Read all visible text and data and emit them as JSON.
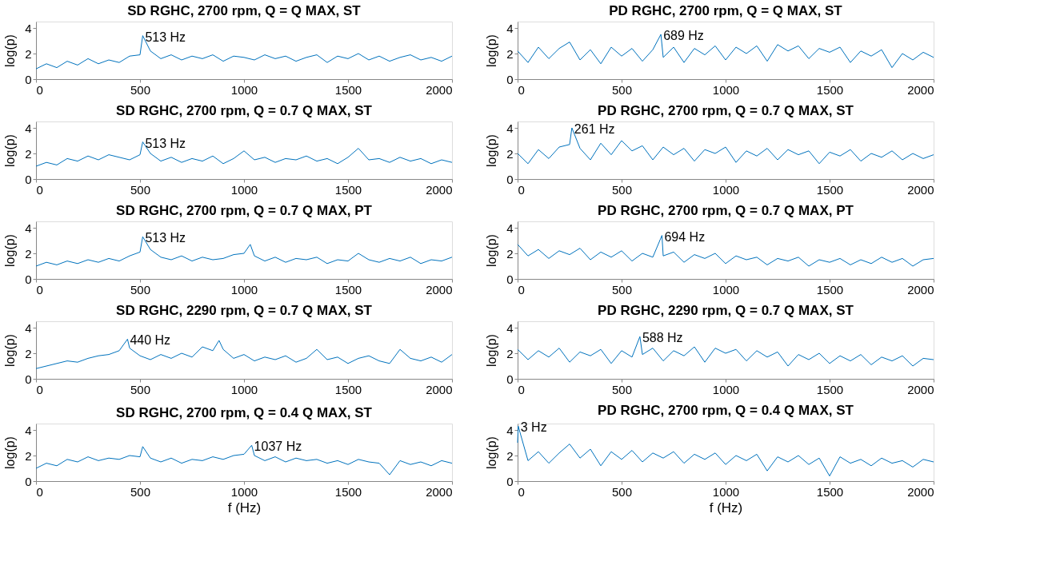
{
  "chart_data": [
    {
      "type": "line",
      "title": "SD RGHC, 2700 rpm, Q = Q MAX, ST",
      "ylabel": "log(p)",
      "xlim": [
        0,
        2000
      ],
      "xticks": [
        0,
        500,
        1000,
        1500,
        2000
      ],
      "ylim": [
        0,
        4.5
      ],
      "yticks": [
        0,
        2,
        4
      ],
      "annotations": [
        {
          "text": "513 Hz",
          "x": 513,
          "y": 3.4
        }
      ],
      "series": [
        {
          "color": "#0072bd",
          "x": [
            0,
            50,
            100,
            150,
            200,
            250,
            300,
            350,
            400,
            450,
            500,
            513,
            550,
            600,
            650,
            700,
            750,
            800,
            850,
            900,
            950,
            1000,
            1050,
            1100,
            1150,
            1200,
            1250,
            1300,
            1350,
            1400,
            1450,
            1500,
            1550,
            1600,
            1650,
            1700,
            1750,
            1800,
            1850,
            1900,
            1950,
            2000
          ],
          "values": [
            0.8,
            1.2,
            0.9,
            1.4,
            1.1,
            1.6,
            1.2,
            1.5,
            1.3,
            1.8,
            1.9,
            3.4,
            2.2,
            1.6,
            1.9,
            1.5,
            1.8,
            1.6,
            1.9,
            1.4,
            1.8,
            1.7,
            1.5,
            1.9,
            1.6,
            1.8,
            1.4,
            1.7,
            1.9,
            1.3,
            1.8,
            1.6,
            2.0,
            1.5,
            1.8,
            1.4,
            1.7,
            1.9,
            1.5,
            1.7,
            1.4,
            1.8
          ]
        }
      ]
    },
    {
      "type": "line",
      "title": "PD RGHC, 2700 rpm, Q = Q MAX, ST",
      "ylabel": "log(p)",
      "xlim": [
        0,
        2000
      ],
      "xticks": [
        0,
        500,
        1000,
        1500,
        2000
      ],
      "ylim": [
        0,
        4.5
      ],
      "yticks": [
        0,
        2,
        4
      ],
      "annotations": [
        {
          "text": "689 Hz",
          "x": 689,
          "y": 3.5
        }
      ],
      "series": [
        {
          "color": "#0072bd",
          "x": [
            0,
            50,
            100,
            150,
            200,
            250,
            300,
            350,
            400,
            450,
            500,
            550,
            600,
            650,
            689,
            700,
            750,
            800,
            850,
            900,
            950,
            1000,
            1050,
            1100,
            1150,
            1200,
            1250,
            1300,
            1350,
            1400,
            1450,
            1500,
            1550,
            1600,
            1650,
            1700,
            1750,
            1800,
            1850,
            1900,
            1950,
            2000
          ],
          "values": [
            2.2,
            1.3,
            2.5,
            1.6,
            2.4,
            2.9,
            1.5,
            2.3,
            1.2,
            2.5,
            1.8,
            2.4,
            1.4,
            2.3,
            3.5,
            1.7,
            2.5,
            1.3,
            2.4,
            1.9,
            2.6,
            1.5,
            2.5,
            2.0,
            2.6,
            1.4,
            2.7,
            2.2,
            2.6,
            1.6,
            2.4,
            2.1,
            2.5,
            1.3,
            2.2,
            1.8,
            2.3,
            0.9,
            2.0,
            1.5,
            2.1,
            1.7
          ]
        }
      ]
    },
    {
      "type": "line",
      "title": "SD RGHC, 2700 rpm, Q = 0.7 Q MAX, ST",
      "ylabel": "log(p)",
      "xlim": [
        0,
        2000
      ],
      "xticks": [
        0,
        500,
        1000,
        1500,
        2000
      ],
      "ylim": [
        0,
        4.5
      ],
      "yticks": [
        0,
        2,
        4
      ],
      "annotations": [
        {
          "text": "513 Hz",
          "x": 513,
          "y": 2.9
        }
      ],
      "series": [
        {
          "color": "#0072bd",
          "x": [
            0,
            50,
            100,
            150,
            200,
            250,
            300,
            350,
            400,
            450,
            500,
            513,
            550,
            600,
            650,
            700,
            750,
            800,
            850,
            900,
            950,
            1000,
            1050,
            1100,
            1150,
            1200,
            1250,
            1300,
            1350,
            1400,
            1450,
            1500,
            1550,
            1600,
            1650,
            1700,
            1750,
            1800,
            1850,
            1900,
            1950,
            2000
          ],
          "values": [
            1.0,
            1.3,
            1.1,
            1.6,
            1.4,
            1.8,
            1.5,
            1.9,
            1.7,
            1.5,
            1.9,
            2.9,
            2.0,
            1.4,
            1.7,
            1.3,
            1.6,
            1.4,
            1.8,
            1.2,
            1.6,
            2.2,
            1.5,
            1.7,
            1.3,
            1.6,
            1.5,
            1.8,
            1.4,
            1.6,
            1.2,
            1.7,
            2.4,
            1.5,
            1.6,
            1.3,
            1.7,
            1.4,
            1.6,
            1.2,
            1.5,
            1.3
          ]
        }
      ]
    },
    {
      "type": "line",
      "title": "PD RGHC, 2700 rpm, Q = 0.7 Q MAX, ST",
      "ylabel": "log(p)",
      "xlim": [
        0,
        2000
      ],
      "xticks": [
        0,
        500,
        1000,
        1500,
        2000
      ],
      "ylim": [
        0,
        4.5
      ],
      "yticks": [
        0,
        2,
        4
      ],
      "annotations": [
        {
          "text": "261 Hz",
          "x": 261,
          "y": 4.0
        }
      ],
      "series": [
        {
          "color": "#0072bd",
          "x": [
            0,
            50,
            100,
            150,
            200,
            250,
            261,
            300,
            350,
            400,
            450,
            500,
            550,
            600,
            650,
            700,
            750,
            800,
            850,
            900,
            950,
            1000,
            1050,
            1100,
            1150,
            1200,
            1250,
            1300,
            1350,
            1400,
            1450,
            1500,
            1550,
            1600,
            1650,
            1700,
            1750,
            1800,
            1850,
            1900,
            1950,
            2000
          ],
          "values": [
            2.0,
            1.2,
            2.3,
            1.6,
            2.5,
            2.7,
            4.0,
            2.4,
            1.5,
            2.8,
            1.9,
            3.0,
            2.2,
            2.6,
            1.5,
            2.5,
            1.9,
            2.4,
            1.4,
            2.3,
            2.0,
            2.5,
            1.3,
            2.2,
            1.8,
            2.4,
            1.5,
            2.3,
            1.9,
            2.2,
            1.2,
            2.1,
            1.8,
            2.3,
            1.4,
            2.0,
            1.7,
            2.2,
            1.5,
            2.0,
            1.6,
            1.9
          ]
        }
      ]
    },
    {
      "type": "line",
      "title": "SD RGHC, 2700 rpm, Q = 0.7 Q MAX, PT",
      "ylabel": "log(p)",
      "xlim": [
        0,
        2000
      ],
      "xticks": [
        0,
        500,
        1000,
        1500,
        2000
      ],
      "ylim": [
        0,
        4.5
      ],
      "yticks": [
        0,
        2,
        4
      ],
      "annotations": [
        {
          "text": "513 Hz",
          "x": 513,
          "y": 3.3
        }
      ],
      "series": [
        {
          "color": "#0072bd",
          "x": [
            0,
            50,
            100,
            150,
            200,
            250,
            300,
            350,
            400,
            450,
            500,
            513,
            550,
            600,
            650,
            700,
            750,
            800,
            850,
            900,
            950,
            1000,
            1030,
            1050,
            1100,
            1150,
            1200,
            1250,
            1300,
            1350,
            1400,
            1450,
            1500,
            1550,
            1600,
            1650,
            1700,
            1750,
            1800,
            1850,
            1900,
            1950,
            2000
          ],
          "values": [
            1.0,
            1.3,
            1.1,
            1.4,
            1.2,
            1.5,
            1.3,
            1.6,
            1.4,
            1.8,
            2.1,
            3.3,
            2.3,
            1.7,
            1.5,
            1.8,
            1.4,
            1.7,
            1.5,
            1.6,
            1.9,
            2.0,
            2.7,
            1.8,
            1.4,
            1.7,
            1.3,
            1.6,
            1.5,
            1.7,
            1.2,
            1.5,
            1.4,
            2.0,
            1.5,
            1.3,
            1.6,
            1.4,
            1.7,
            1.2,
            1.5,
            1.4,
            1.7
          ]
        }
      ]
    },
    {
      "type": "line",
      "title": "PD RGHC, 2700 rpm, Q = 0.7 Q MAX, PT",
      "ylabel": "log(p)",
      "xlim": [
        0,
        2000
      ],
      "xticks": [
        0,
        500,
        1000,
        1500,
        2000
      ],
      "ylim": [
        0,
        4.5
      ],
      "yticks": [
        0,
        2,
        4
      ],
      "annotations": [
        {
          "text": "694 Hz",
          "x": 694,
          "y": 3.4
        }
      ],
      "series": [
        {
          "color": "#0072bd",
          "x": [
            0,
            50,
            100,
            150,
            200,
            250,
            300,
            350,
            400,
            450,
            500,
            550,
            600,
            650,
            694,
            700,
            750,
            800,
            850,
            900,
            950,
            1000,
            1050,
            1100,
            1150,
            1200,
            1250,
            1300,
            1350,
            1400,
            1450,
            1500,
            1550,
            1600,
            1650,
            1700,
            1750,
            1800,
            1850,
            1900,
            1950,
            2000
          ],
          "values": [
            2.7,
            1.8,
            2.3,
            1.6,
            2.2,
            1.9,
            2.4,
            1.5,
            2.1,
            1.7,
            2.2,
            1.4,
            2.0,
            1.7,
            3.4,
            1.8,
            2.1,
            1.3,
            1.9,
            1.6,
            2.0,
            1.2,
            1.8,
            1.5,
            1.7,
            1.1,
            1.6,
            1.4,
            1.7,
            1.0,
            1.5,
            1.3,
            1.6,
            1.1,
            1.5,
            1.2,
            1.7,
            1.3,
            1.6,
            1.0,
            1.5,
            1.6
          ]
        }
      ]
    },
    {
      "type": "line",
      "title": "SD RGHC, 2290 rpm, Q = 0.7 Q MAX, ST",
      "ylabel": "log(p)",
      "xlim": [
        0,
        2000
      ],
      "xticks": [
        0,
        500,
        1000,
        1500,
        2000
      ],
      "ylim": [
        0,
        4.5
      ],
      "yticks": [
        0,
        2,
        4
      ],
      "annotations": [
        {
          "text": "440 Hz",
          "x": 440,
          "y": 3.1
        }
      ],
      "series": [
        {
          "color": "#0072bd",
          "x": [
            0,
            50,
            100,
            150,
            200,
            250,
            300,
            350,
            400,
            440,
            450,
            500,
            550,
            600,
            650,
            700,
            750,
            800,
            850,
            880,
            900,
            950,
            1000,
            1050,
            1100,
            1150,
            1200,
            1250,
            1300,
            1350,
            1400,
            1450,
            1500,
            1550,
            1600,
            1650,
            1700,
            1750,
            1800,
            1850,
            1900,
            1950,
            2000
          ],
          "values": [
            0.8,
            1.0,
            1.2,
            1.4,
            1.3,
            1.6,
            1.8,
            1.9,
            2.2,
            3.1,
            2.4,
            1.8,
            1.5,
            1.9,
            1.6,
            2.0,
            1.7,
            2.5,
            2.2,
            3.0,
            2.3,
            1.6,
            1.9,
            1.4,
            1.7,
            1.5,
            1.8,
            1.3,
            1.6,
            2.3,
            1.5,
            1.7,
            1.2,
            1.6,
            1.8,
            1.4,
            1.2,
            2.3,
            1.6,
            1.4,
            1.7,
            1.3,
            1.9
          ]
        }
      ]
    },
    {
      "type": "line",
      "title": "PD RGHC, 2290 rpm, Q = 0.7 Q MAX, ST",
      "ylabel": "log(p)",
      "xlim": [
        0,
        2000
      ],
      "xticks": [
        0,
        500,
        1000,
        1500,
        2000
      ],
      "ylim": [
        0,
        4.5
      ],
      "yticks": [
        0,
        2,
        4
      ],
      "annotations": [
        {
          "text": "588 Hz",
          "x": 588,
          "y": 3.3
        }
      ],
      "series": [
        {
          "color": "#0072bd",
          "x": [
            0,
            50,
            100,
            150,
            200,
            250,
            300,
            350,
            400,
            450,
            500,
            550,
            588,
            600,
            650,
            700,
            750,
            800,
            850,
            900,
            950,
            1000,
            1050,
            1100,
            1150,
            1200,
            1250,
            1300,
            1350,
            1400,
            1450,
            1500,
            1550,
            1600,
            1650,
            1700,
            1750,
            1800,
            1850,
            1900,
            1950,
            2000
          ],
          "values": [
            2.3,
            1.5,
            2.2,
            1.7,
            2.4,
            1.3,
            2.1,
            1.8,
            2.3,
            1.2,
            2.2,
            1.7,
            3.3,
            1.9,
            2.4,
            1.4,
            2.2,
            1.8,
            2.5,
            1.3,
            2.4,
            2.0,
            2.3,
            1.4,
            2.2,
            1.7,
            2.1,
            1.0,
            1.9,
            1.5,
            2.0,
            1.2,
            1.8,
            1.4,
            1.9,
            1.1,
            1.7,
            1.4,
            1.8,
            1.0,
            1.6,
            1.5
          ]
        }
      ]
    },
    {
      "type": "line",
      "title": "SD RGHC, 2700 rpm, Q = 0.4 Q MAX, ST",
      "xlabel": "f (Hz)",
      "ylabel": "log(p)",
      "xlim": [
        0,
        2000
      ],
      "xticks": [
        0,
        500,
        1000,
        1500,
        2000
      ],
      "ylim": [
        0,
        4.5
      ],
      "yticks": [
        0,
        2,
        4
      ],
      "annotations": [
        {
          "text": "1037 Hz",
          "x": 1037,
          "y": 2.8
        }
      ],
      "series": [
        {
          "color": "#0072bd",
          "x": [
            0,
            50,
            100,
            150,
            200,
            250,
            300,
            350,
            400,
            450,
            500,
            513,
            550,
            600,
            650,
            700,
            750,
            800,
            850,
            900,
            950,
            1000,
            1037,
            1050,
            1100,
            1150,
            1200,
            1250,
            1300,
            1350,
            1400,
            1450,
            1500,
            1550,
            1600,
            1650,
            1700,
            1750,
            1800,
            1850,
            1900,
            1950,
            2000
          ],
          "values": [
            1.0,
            1.4,
            1.2,
            1.7,
            1.5,
            1.9,
            1.6,
            1.8,
            1.7,
            2.0,
            1.9,
            2.7,
            1.8,
            1.5,
            1.8,
            1.4,
            1.7,
            1.6,
            1.9,
            1.7,
            2.0,
            2.1,
            2.8,
            2.0,
            1.6,
            1.9,
            1.5,
            1.8,
            1.6,
            1.7,
            1.4,
            1.6,
            1.3,
            1.7,
            1.5,
            1.4,
            0.5,
            1.6,
            1.3,
            1.5,
            1.2,
            1.6,
            1.4
          ]
        }
      ]
    },
    {
      "type": "line",
      "title": "PD RGHC, 2700 rpm, Q = 0.4 Q MAX, ST",
      "xlabel": "f (Hz)",
      "ylabel": "log(p)",
      "xlim": [
        0,
        2000
      ],
      "xticks": [
        0,
        500,
        1000,
        1500,
        2000
      ],
      "ylim": [
        0,
        4.5
      ],
      "yticks": [
        0,
        2,
        4
      ],
      "annotations": [
        {
          "text": "3 Hz",
          "x": 3,
          "y": 4.3
        }
      ],
      "series": [
        {
          "color": "#0072bd",
          "x": [
            0,
            3,
            50,
            100,
            150,
            200,
            250,
            300,
            350,
            400,
            450,
            500,
            550,
            600,
            650,
            700,
            750,
            800,
            850,
            900,
            950,
            1000,
            1050,
            1100,
            1150,
            1200,
            1250,
            1300,
            1350,
            1400,
            1450,
            1500,
            1550,
            1600,
            1650,
            1700,
            1750,
            1800,
            1850,
            1900,
            1950,
            2000
          ],
          "values": [
            3.0,
            4.3,
            1.6,
            2.3,
            1.4,
            2.2,
            2.9,
            1.8,
            2.5,
            1.2,
            2.3,
            1.7,
            2.4,
            1.5,
            2.2,
            1.8,
            2.3,
            1.4,
            2.1,
            1.7,
            2.2,
            1.3,
            2.0,
            1.6,
            2.1,
            0.8,
            1.9,
            1.5,
            2.0,
            1.3,
            1.8,
            0.4,
            1.9,
            1.4,
            1.7,
            1.2,
            1.8,
            1.4,
            1.6,
            1.1,
            1.7,
            1.5
          ]
        }
      ]
    }
  ]
}
